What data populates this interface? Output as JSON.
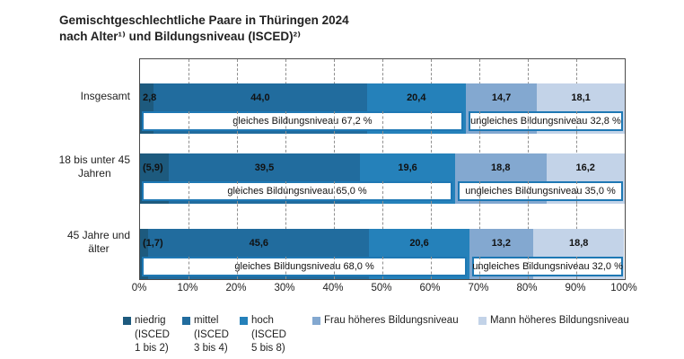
{
  "title": {
    "line1": "Gemischtgeschlechtliche Paare in Thüringen 2024",
    "line2": "nach Alter¹⁾ und Bildungsniveau (ISCED)²⁾"
  },
  "chart_data": {
    "type": "bar",
    "stacked": true,
    "orientation": "horizontal",
    "unit": "%",
    "xlim": [
      0,
      100
    ],
    "grid": "dashed-vertical-every-10",
    "legend_position": "bottom",
    "x_ticks": [
      "0%",
      "10%",
      "20%",
      "30%",
      "40%",
      "50%",
      "60%",
      "70%",
      "80%",
      "90%",
      "100%"
    ],
    "series_names": [
      "niedrig (ISCED 1 bis 2)",
      "mittel (ISCED 3 bis 4)",
      "hoch (ISCED 5 bis 8)",
      "Frau höheres Bildungsniveau",
      "Mann höheres Bildungsniveau"
    ],
    "colors": [
      "#1d5a7e",
      "#216c9e",
      "#2581ba",
      "#83a8d0",
      "#c3d3e8"
    ],
    "rows": [
      {
        "category": "Insgesamt",
        "values": [
          2.8,
          44.0,
          20.4,
          14.7,
          18.1
        ],
        "value_labels": [
          "2,8",
          "44,0",
          "20,4",
          "14,7",
          "18,1"
        ],
        "gleiches_pct": 67.2,
        "gleiches_label": "gleiches Bildungsniveau 67,2 %",
        "ungleiches_label": "ungleiches Bildungsniveau 32,8 %"
      },
      {
        "category": "18 bis unter 45\nJahren",
        "values": [
          5.9,
          39.5,
          19.6,
          18.8,
          16.2
        ],
        "value_labels": [
          "(5,9)",
          "39,5",
          "19,6",
          "18,8",
          "16,2"
        ],
        "gleiches_pct": 65.0,
        "gleiches_label": "gleiches Bildungsniveau 65,0 %",
        "ungleiches_label": "ungleiches Bildungsniveau 35,0 %"
      },
      {
        "category": "45 Jahre und\nälter",
        "values": [
          1.7,
          45.6,
          20.6,
          13.2,
          18.8
        ],
        "value_labels": [
          "(1,7)",
          "45,6",
          "20,6",
          "13,2",
          "18,8"
        ],
        "gleiches_pct": 68.0,
        "gleiches_label": "gleiches Bildungsniveau 68,0 %",
        "ungleiches_label": "ungleiches Bildungsniveau 32,0 %"
      }
    ]
  },
  "legend": {
    "items": [
      {
        "label": "niedrig\n(ISCED\n1 bis 2)",
        "color": "#1d5a7e"
      },
      {
        "label": "mittel\n(ISCED\n3 bis 4)",
        "color": "#216c9e"
      },
      {
        "label": "hoch\n(ISCED\n5 bis 8)",
        "color": "#2581ba"
      },
      {
        "label": "Frau höheres Bildungsniveau",
        "color": "#83a8d0"
      },
      {
        "label": "Mann höheres Bildungsniveau",
        "color": "#c3d3e8"
      }
    ]
  },
  "colors": {
    "box_border": "#1e78b4",
    "plot_border": "#4a4a4a",
    "gridline": "#8f8f8f",
    "text": "#1f1f1f"
  }
}
